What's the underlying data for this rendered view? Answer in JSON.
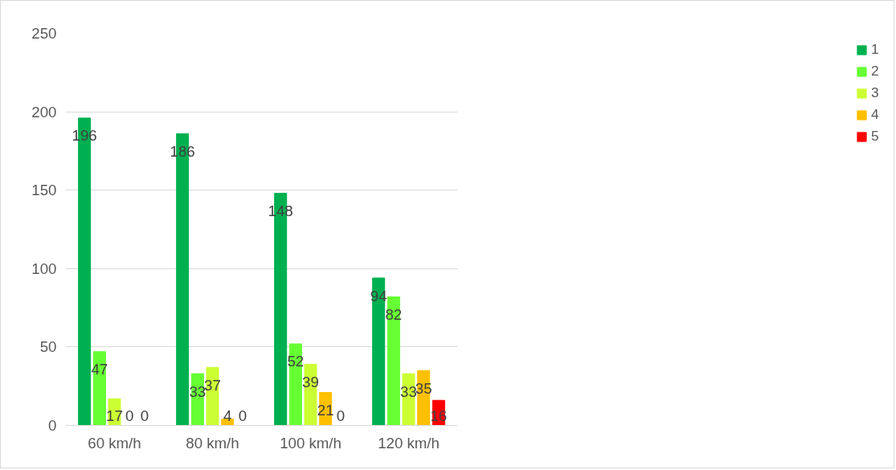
{
  "chart_data": {
    "type": "bar",
    "categories": [
      "60 km/h",
      "80 km/h",
      "100 km/h",
      "120 km/h"
    ],
    "series": [
      {
        "name": "1",
        "color": "#00b050",
        "values": [
          196,
          186,
          148,
          94
        ]
      },
      {
        "name": "2",
        "color": "#66ff33",
        "values": [
          47,
          33,
          52,
          82
        ]
      },
      {
        "name": "3",
        "color": "#ccff33",
        "values": [
          17,
          37,
          39,
          33
        ]
      },
      {
        "name": "4",
        "color": "#ffc000",
        "values": [
          0,
          4,
          21,
          35
        ]
      },
      {
        "name": "5",
        "color": "#ff0000",
        "values": [
          0,
          0,
          0,
          16
        ]
      }
    ],
    "ylim": [
      0,
      250
    ],
    "yticks": [
      0,
      50,
      100,
      150,
      200,
      250
    ],
    "grid": "y",
    "legend": "right",
    "data_labels": true
  }
}
